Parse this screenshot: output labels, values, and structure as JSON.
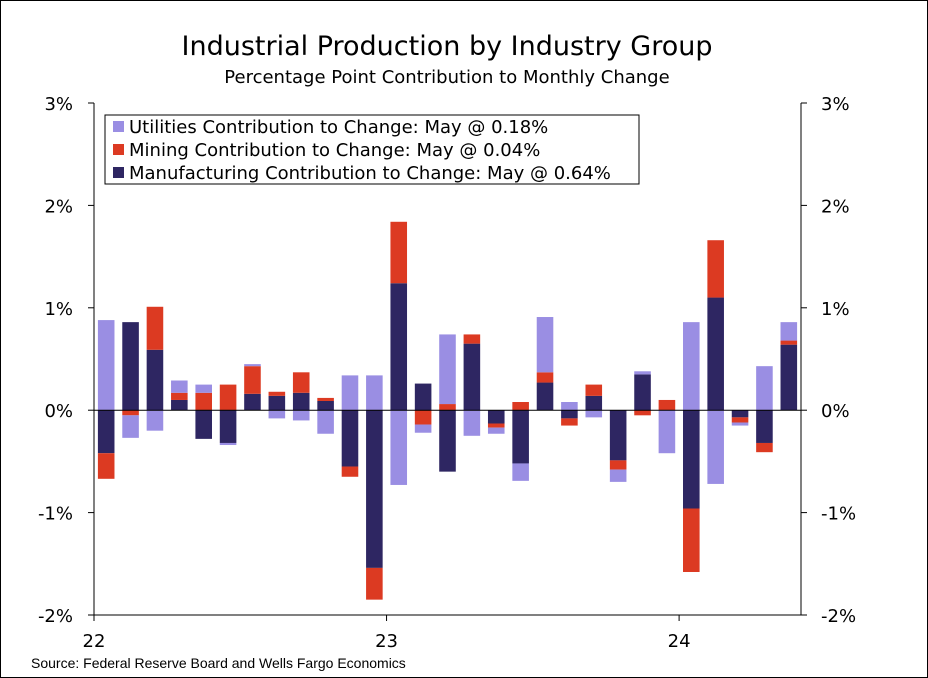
{
  "header": {
    "title": "Industrial Production by Industry Group",
    "subtitle": "Percentage Point Contribution to Monthly Change"
  },
  "footer": {
    "source": "Source: Federal Reserve Board and Wells Fargo Economics"
  },
  "chart_data": {
    "type": "bar",
    "stacked": true,
    "title": "Industrial Production by Industry Group",
    "subtitle": "Percentage Point Contribution to Monthly Change",
    "xlabel": "",
    "ylabel": "",
    "ylim": [
      -2,
      3
    ],
    "y_ticks": [
      "3%",
      "2%",
      "1%",
      "0%",
      "-1%",
      "-2%"
    ],
    "y_tick_values": [
      3,
      2,
      1,
      0,
      -1,
      -2
    ],
    "x_tick_labels": [
      {
        "label": "22",
        "month_index": 0
      },
      {
        "label": "23",
        "month_index": 12
      },
      {
        "label": "24",
        "month_index": 24
      }
    ],
    "grid": false,
    "dual_axis_labels": true,
    "legend_position": "top-left",
    "categories": [
      "Jan 22",
      "Feb 22",
      "Mar 22",
      "Apr 22",
      "May 22",
      "Jun 22",
      "Jul 22",
      "Aug 22",
      "Sep 22",
      "Oct 22",
      "Nov 22",
      "Dec 22",
      "Jan 23",
      "Feb 23",
      "Mar 23",
      "Apr 23",
      "May 23",
      "Jun 23",
      "Jul 23",
      "Aug 23",
      "Sep 23",
      "Oct 23",
      "Nov 23",
      "Dec 23",
      "Jan 24",
      "Feb 24",
      "Mar 24",
      "Apr 24",
      "May 24"
    ],
    "series": [
      {
        "name": "Utilities Contribution to Change: May @ 0.18%",
        "color": "#9a8ee3",
        "values": [
          0.88,
          -0.22,
          -0.2,
          0.12,
          0.08,
          -0.02,
          0.02,
          -0.08,
          -0.1,
          -0.23,
          0.34,
          0.34,
          -0.73,
          -0.08,
          0.68,
          -0.25,
          -0.06,
          -0.17,
          0.54,
          0.08,
          -0.07,
          -0.12,
          0.03,
          -0.42,
          0.86,
          -0.72,
          -0.03,
          0.43,
          0.18
        ]
      },
      {
        "name": "Mining Contribution to Change: May @ 0.04%",
        "color": "#dc3a22",
        "values": [
          -0.25,
          -0.05,
          0.42,
          0.07,
          0.17,
          0.25,
          0.27,
          0.04,
          0.2,
          0.03,
          -0.1,
          -0.31,
          0.6,
          -0.14,
          0.06,
          0.09,
          -0.04,
          0.08,
          0.1,
          -0.07,
          0.11,
          -0.09,
          -0.05,
          0.1,
          -0.62,
          0.56,
          -0.05,
          -0.09,
          0.04
        ]
      },
      {
        "name": "Manufacturing Contribution to Change: May @ 0.64%",
        "color": "#2e2662",
        "values": [
          -0.42,
          0.86,
          0.59,
          0.1,
          -0.28,
          -0.32,
          0.16,
          0.14,
          0.17,
          0.09,
          -0.55,
          -1.54,
          1.24,
          0.26,
          -0.6,
          0.65,
          -0.13,
          -0.52,
          0.27,
          -0.08,
          0.14,
          -0.49,
          0.35,
          0.0,
          -0.96,
          1.1,
          -0.07,
          -0.32,
          0.64
        ]
      }
    ]
  }
}
